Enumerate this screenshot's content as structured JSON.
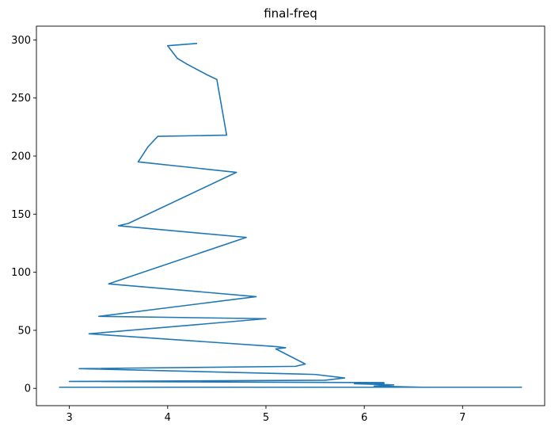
{
  "chart_data": {
    "type": "line",
    "title": "final-freq",
    "xlabel": "",
    "ylabel": "",
    "xlim": [
      2.665,
      7.835
    ],
    "ylim": [
      -14.85,
      311.85
    ],
    "xticks": [
      3,
      4,
      5,
      6,
      7
    ],
    "yticks": [
      0,
      50,
      100,
      150,
      200,
      250,
      300
    ],
    "grid": false,
    "legend": "none",
    "series": [
      {
        "color": "#1f77b4",
        "points": [
          [
            4.3,
            297
          ],
          [
            4.0,
            295
          ],
          [
            4.1,
            284
          ],
          [
            4.2,
            279
          ],
          [
            4.4,
            270
          ],
          [
            4.5,
            266
          ],
          [
            4.6,
            218
          ],
          [
            3.9,
            217
          ],
          [
            3.8,
            208
          ],
          [
            3.7,
            195
          ],
          [
            4.7,
            186
          ],
          [
            3.6,
            142
          ],
          [
            3.5,
            140
          ],
          [
            4.8,
            130
          ],
          [
            3.4,
            90
          ],
          [
            4.9,
            79
          ],
          [
            3.3,
            62
          ],
          [
            5.0,
            60
          ],
          [
            3.2,
            47
          ],
          [
            5.1,
            36
          ],
          [
            5.2,
            35
          ],
          [
            5.1,
            34
          ],
          [
            5.4,
            21
          ],
          [
            5.3,
            19
          ],
          [
            3.1,
            17
          ],
          [
            5.5,
            12
          ],
          [
            5.8,
            9
          ],
          [
            5.6,
            7
          ],
          [
            3.0,
            6
          ],
          [
            6.2,
            5
          ],
          [
            6.2,
            4
          ],
          [
            5.9,
            4
          ],
          [
            6.3,
            3
          ],
          [
            6.1,
            2
          ],
          [
            6.6,
            1
          ],
          [
            2.9,
            1
          ],
          [
            7.6,
            1
          ],
          [
            2.9,
            1
          ],
          [
            7.6,
            1
          ],
          [
            2.9,
            1
          ],
          [
            6.2,
            1
          ]
        ]
      }
    ]
  }
}
